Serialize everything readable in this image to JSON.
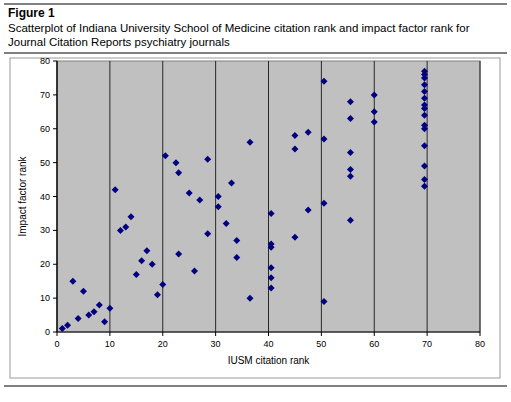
{
  "chart_data": {
    "type": "scatter",
    "title": "Figure 1",
    "subtitle": "Scatterplot of Indiana University School of Medicine citation rank and impact factor rank for Journal Citation Reports psychiatry journals",
    "x_label": "IUSM citation rank",
    "y_label": "Impact factor rank",
    "x": [
      1,
      2,
      3,
      4,
      5,
      6,
      7,
      8,
      9,
      10,
      11,
      12,
      13,
      14,
      15,
      16,
      17,
      18,
      19,
      20,
      20.5,
      22.5,
      23,
      23,
      25,
      26,
      27,
      28.5,
      28.5,
      30.5,
      30.5,
      32,
      33,
      34,
      34,
      36.5,
      36.5,
      40.5,
      40.5,
      40.5,
      40.5,
      40.5,
      40.5,
      45,
      45,
      45,
      47.5,
      47.5,
      50.5,
      50.5,
      50.5,
      50.5,
      55.5,
      55.5,
      55.5,
      55.5,
      55.5,
      55.5,
      60,
      60,
      60,
      69.5,
      69.5,
      69.5,
      69.5,
      69.5,
      69.5,
      69.5,
      69.5,
      69.5,
      69.5,
      69.5,
      69.5,
      69.5,
      69.5,
      69.5
    ],
    "values": [
      1,
      2,
      15,
      4,
      12,
      5,
      6,
      8,
      3,
      7,
      42,
      30,
      31,
      34,
      17,
      21,
      24,
      20,
      11,
      14,
      52,
      50,
      47,
      23,
      41,
      18,
      39,
      51,
      29,
      40,
      37,
      32,
      44,
      27,
      22,
      56,
      10,
      35,
      26,
      25,
      19,
      16,
      13,
      58,
      54,
      28,
      59,
      36,
      74,
      57,
      38,
      9,
      68,
      63,
      53,
      48,
      46,
      33,
      70,
      65,
      62,
      77,
      76,
      75,
      73,
      71,
      69,
      67,
      66,
      64,
      61,
      60,
      55,
      49,
      45,
      43
    ],
    "color": "#000080",
    "marker": "diamond",
    "xlim": [
      0,
      80
    ],
    "ylim": [
      0,
      80
    ],
    "xticks": [
      0,
      10,
      20,
      30,
      40,
      50,
      60,
      70,
      80
    ],
    "yticks": [
      0,
      10,
      20,
      30,
      40,
      50,
      60,
      70,
      80
    ],
    "grid": true
  }
}
